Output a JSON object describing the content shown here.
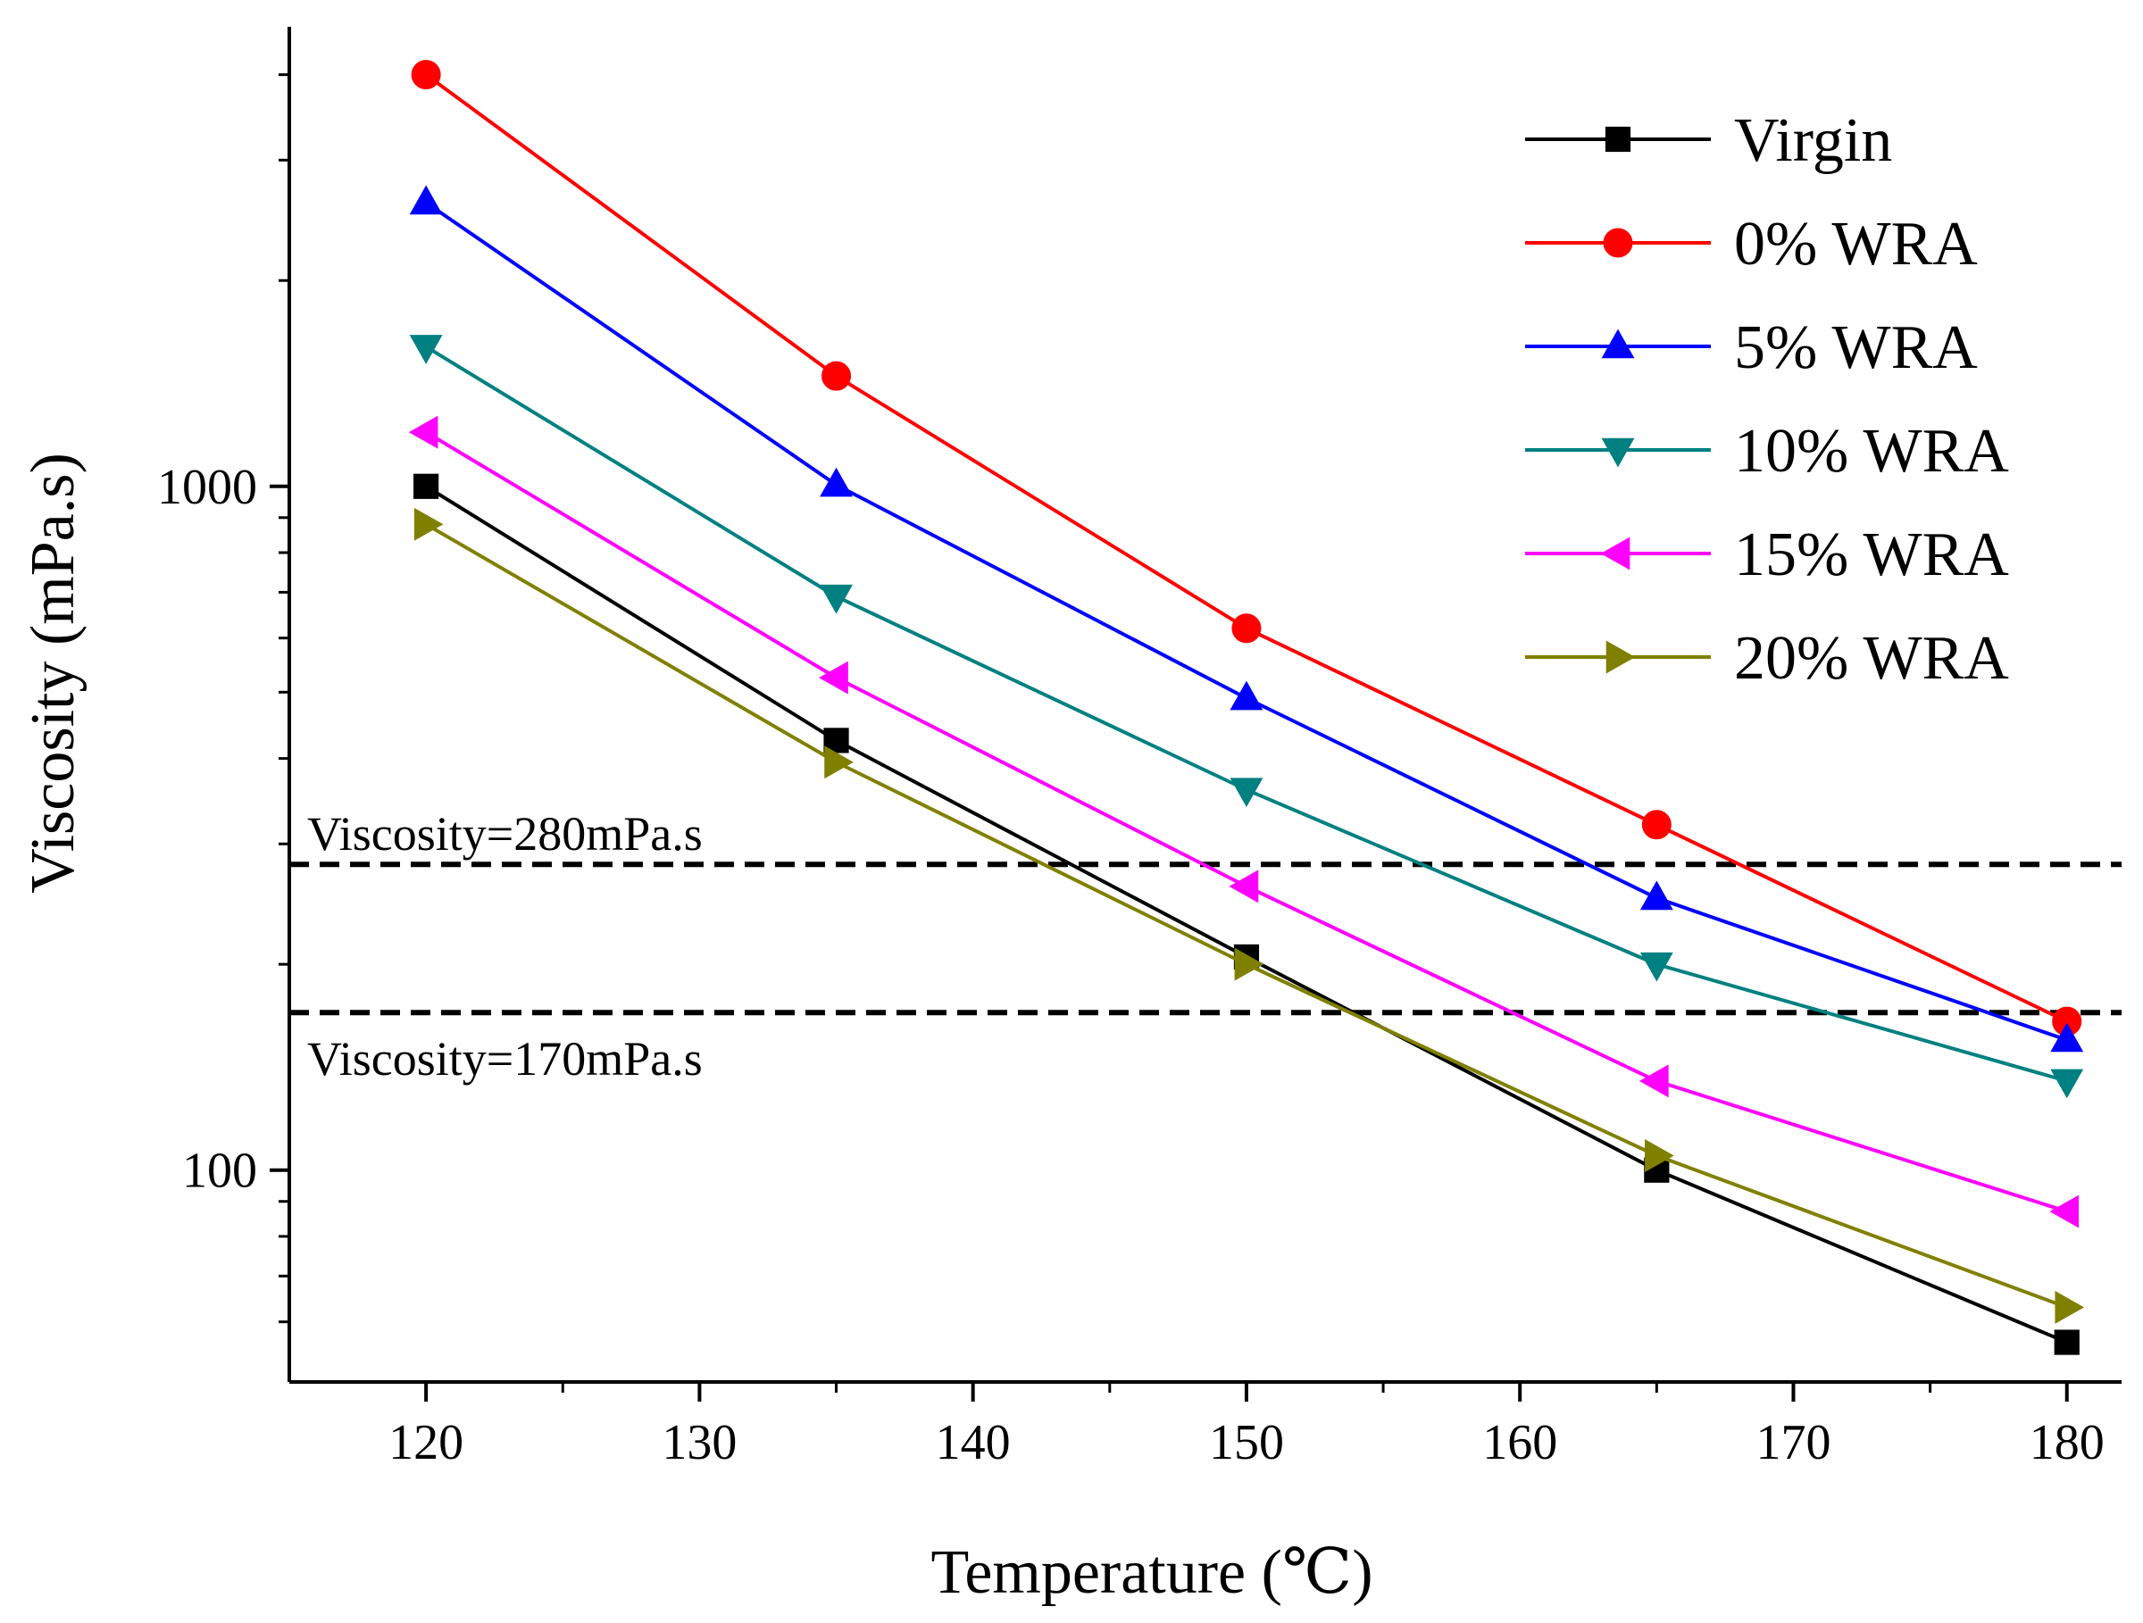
{
  "chart_data": {
    "type": "line",
    "title": "",
    "xlabel": "Temperature (℃)",
    "ylabel": "Viscosity (mPa.s)",
    "x": [
      120,
      135,
      150,
      165,
      180
    ],
    "xlim": [
      115,
      182
    ],
    "x_major_ticks": [
      120,
      130,
      140,
      150,
      160,
      170,
      180
    ],
    "x_minor_ticks": [
      125,
      135,
      145,
      155,
      165,
      175
    ],
    "y_scale": "log",
    "ylim": [
      49,
      4700
    ],
    "y_major_ticks": [
      {
        "value": 100,
        "label": "100"
      },
      {
        "value": 1000,
        "label": "1000"
      }
    ],
    "y_minor_ticks": [
      60,
      70,
      80,
      90,
      200,
      300,
      400,
      500,
      600,
      700,
      800,
      900,
      2000,
      3000,
      4000
    ],
    "legend_position": "top-right",
    "series": [
      {
        "name": "Virgin",
        "color": "#000000",
        "marker": "square",
        "values": [
          1000,
          425,
          205,
          100,
          56
        ]
      },
      {
        "name": "0% WRA",
        "color": "#ff0000",
        "marker": "circle",
        "values": [
          4000,
          1450,
          620,
          320,
          165
        ]
      },
      {
        "name": "5% WRA",
        "color": "#0000ff",
        "marker": "triangle-up",
        "values": [
          2600,
          1005,
          490,
          250,
          155
        ]
      },
      {
        "name": "10% WRA",
        "color": "#008080",
        "marker": "triangle-down",
        "values": [
          1600,
          690,
          360,
          200,
          135
        ]
      },
      {
        "name": "15% WRA",
        "color": "#ff00ff",
        "marker": "triangle-left",
        "values": [
          1200,
          525,
          260,
          135,
          87
        ]
      },
      {
        "name": "20% WRA",
        "color": "#808000",
        "marker": "triangle-right",
        "values": [
          880,
          395,
          200,
          105,
          63
        ]
      }
    ],
    "reference_lines": [
      {
        "y": 280,
        "label": "Viscosity=280mPa.s",
        "label_position": "above-left",
        "style": "dashed"
      },
      {
        "y": 170,
        "label": "Viscosity=170mPa.s",
        "label_position": "below-left",
        "style": "dashed"
      }
    ]
  }
}
